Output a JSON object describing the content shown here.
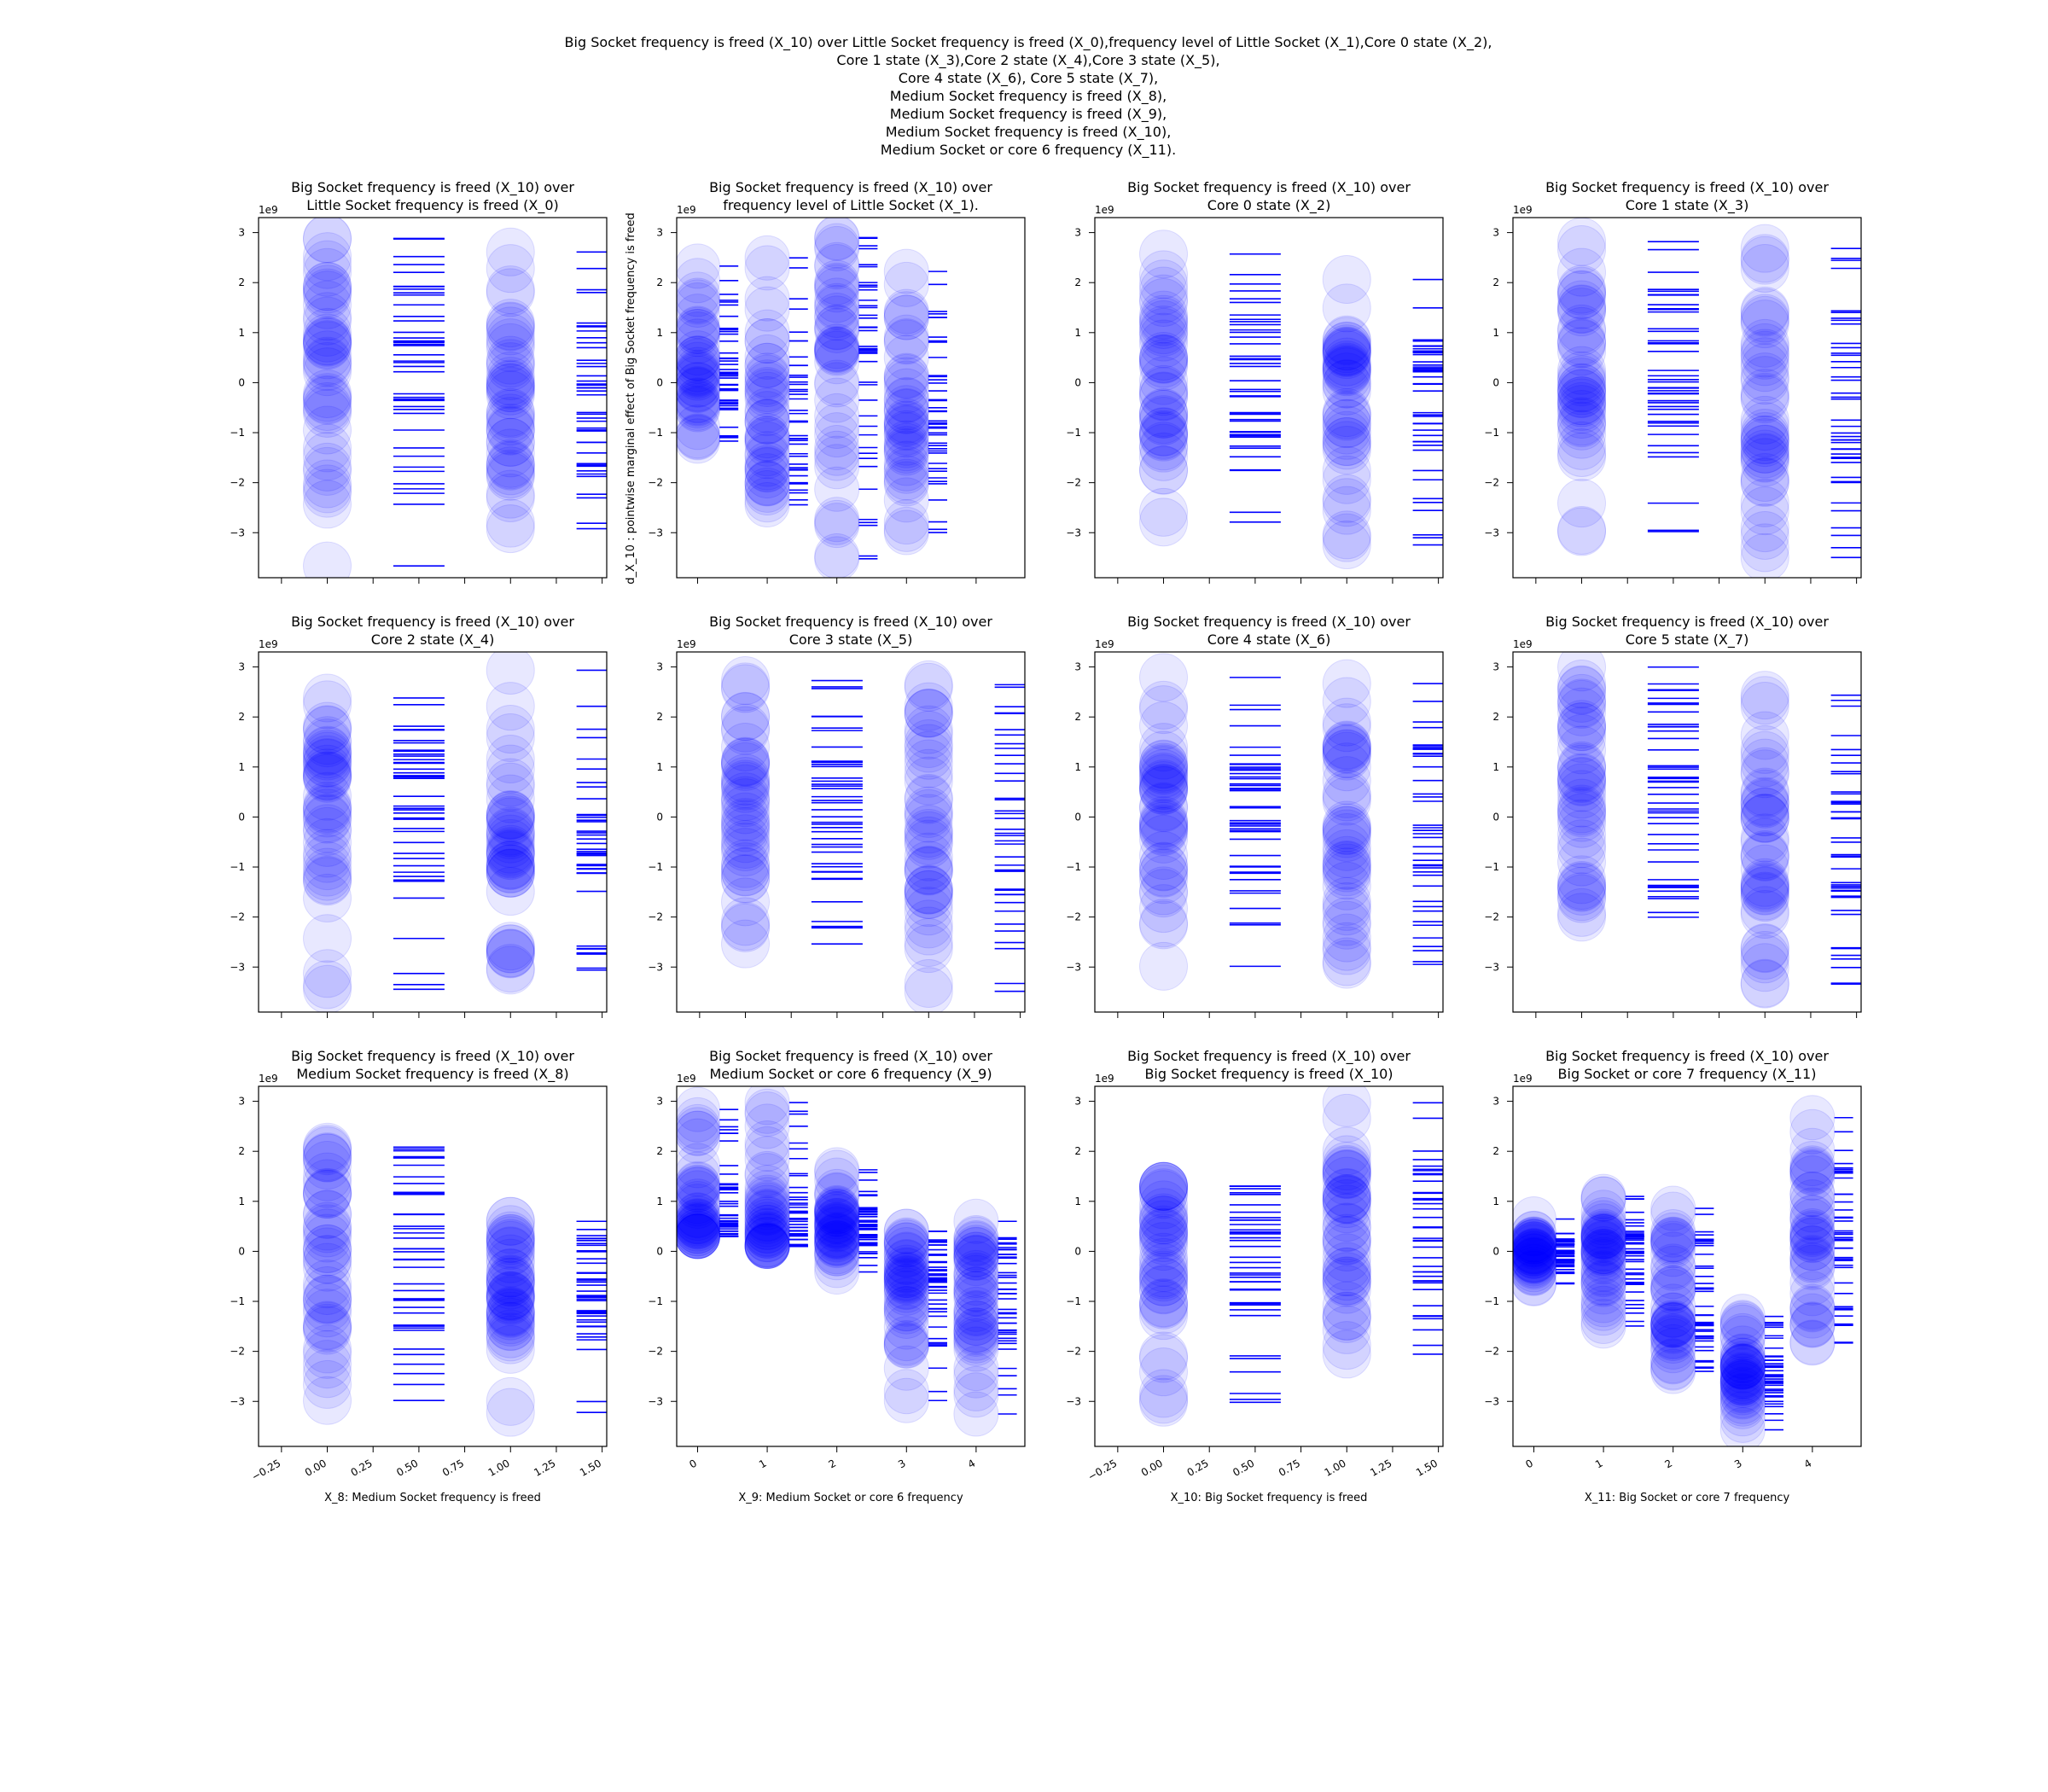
{
  "figure": {
    "title_lines": [
      "Big Socket frequency is freed (X_10) over Little Socket frequency is freed (X_0),frequency level of Little Socket (X_1),Core 0 state (X_2),",
      "Core 1 state (X_3),Core 2 state (X_4),Core 3 state (X_5),",
      "Core 4 state (X_6), Core 5 state (X_7),",
      "Medium Socket frequency is freed (X_8),",
      "Medium Socket frequency is freed (X_9),",
      "Medium Socket frequency is freed (X_10),",
      "Medium Socket or core 6 frequency (X_11)."
    ],
    "shared_ylabel": "d_X_10 : pointwise marginal effect of Big Socket frequency is freed",
    "colors": {
      "marker": "#0000ff",
      "axes": "#000000"
    }
  },
  "chart_data": [
    {
      "type": "scatter",
      "title_lines": [
        "Big Socket frequency is freed (X_10) over",
        "Little Socket frequency is freed (X_0)"
      ],
      "x_kind": "binary",
      "ylim": [
        -3.9,
        3.3
      ],
      "y_exponent": "1e9",
      "yticks": [
        "−3",
        "−2",
        "−1",
        "0",
        "1",
        "2",
        "3"
      ],
      "groups": [
        {
          "x": 0,
          "ymin": -3.7,
          "ymax": 2.9,
          "center": 0.4
        },
        {
          "x": 1,
          "ymin": -3.0,
          "ymax": 2.9,
          "center": -0.6
        }
      ]
    },
    {
      "type": "scatter",
      "title_lines": [
        "Big Socket frequency is freed (X_10) over",
        "frequency level of Little Socket (X_1)."
      ],
      "x_kind": "categorical5",
      "ylim": [
        -3.9,
        3.3
      ],
      "y_exponent": "1e9",
      "yticks": [
        "−3",
        "−2",
        "−1",
        "0",
        "1",
        "2",
        "3"
      ],
      "groups": [
        {
          "x": 0,
          "ymin": -1.4,
          "ymax": 2.4,
          "center": 0.2
        },
        {
          "x": 1,
          "ymin": -2.9,
          "ymax": 2.7,
          "center": -0.5
        },
        {
          "x": 2,
          "ymin": -3.6,
          "ymax": 2.9,
          "center": 0.4
        },
        {
          "x": 3,
          "ymin": -3.0,
          "ymax": 2.9,
          "center": -0.3
        }
      ]
    },
    {
      "type": "scatter",
      "title_lines": [
        "Big Socket frequency is freed (X_10) over",
        "Core 0 state (X_2)"
      ],
      "x_kind": "binary",
      "ylim": [
        -3.9,
        3.3
      ],
      "y_exponent": "1e9",
      "yticks": [
        "−3",
        "−2",
        "−1",
        "0",
        "1",
        "2",
        "3"
      ],
      "groups": [
        {
          "x": 0,
          "ymin": -2.9,
          "ymax": 2.8,
          "center": 0.3
        },
        {
          "x": 1,
          "ymin": -3.6,
          "ymax": 3.1,
          "center": -0.4
        }
      ]
    },
    {
      "type": "scatter",
      "title_lines": [
        "Big Socket frequency is freed (X_10) over",
        "Core 1 state (X_3)"
      ],
      "x_kind": "binary",
      "ylim": [
        -3.9,
        3.3
      ],
      "y_exponent": "1e9",
      "yticks": [
        "−3",
        "−2",
        "−1",
        "0",
        "1",
        "2",
        "3"
      ],
      "groups": [
        {
          "x": 0,
          "ymin": -3.0,
          "ymax": 3.0,
          "center": 0.3
        },
        {
          "x": 1,
          "ymin": -3.6,
          "ymax": 2.8,
          "center": -0.2
        }
      ]
    },
    {
      "type": "scatter",
      "title_lines": [
        "Big Socket frequency is freed (X_10) over",
        "Core 2 state (X_4)"
      ],
      "x_kind": "binary",
      "ylim": [
        -3.9,
        3.3
      ],
      "y_exponent": "1e9",
      "yticks": [
        "−3",
        "−2",
        "−1",
        "0",
        "1",
        "2",
        "3"
      ],
      "groups": [
        {
          "x": 0,
          "ymin": -3.6,
          "ymax": 3.0,
          "center": 0.4
        },
        {
          "x": 1,
          "ymin": -3.1,
          "ymax": 3.0,
          "center": -0.4
        }
      ]
    },
    {
      "type": "scatter",
      "title_lines": [
        "Big Socket frequency is freed (X_10) over",
        "Core 3 state (X_5)"
      ],
      "x_kind": "binary",
      "ylim": [
        -3.9,
        3.3
      ],
      "y_exponent": "1e9",
      "yticks": [
        "−3",
        "−2",
        "−1",
        "0",
        "1",
        "2",
        "3"
      ],
      "groups": [
        {
          "x": 0,
          "ymin": -2.8,
          "ymax": 3.0,
          "center": 0.2
        },
        {
          "x": 1,
          "ymin": -3.6,
          "ymax": 3.0,
          "center": -0.5
        }
      ]
    },
    {
      "type": "scatter",
      "title_lines": [
        "Big Socket frequency is freed (X_10) over",
        "Core 4 state (X_6)"
      ],
      "x_kind": "binary",
      "ylim": [
        -3.9,
        3.3
      ],
      "y_exponent": "1e9",
      "yticks": [
        "−3",
        "−2",
        "−1",
        "0",
        "1",
        "2",
        "3"
      ],
      "groups": [
        {
          "x": 0,
          "ymin": -3.6,
          "ymax": 3.0,
          "center": 0.3
        },
        {
          "x": 1,
          "ymin": -3.1,
          "ymax": 2.7,
          "center": -0.3
        }
      ]
    },
    {
      "type": "scatter",
      "title_lines": [
        "Big Socket frequency is freed (X_10) over",
        "Core 5 state (X_7)"
      ],
      "x_kind": "binary",
      "ylim": [
        -3.9,
        3.3
      ],
      "y_exponent": "1e9",
      "yticks": [
        "−3",
        "−2",
        "−1",
        "0",
        "1",
        "2",
        "3"
      ],
      "groups": [
        {
          "x": 0,
          "ymin": -2.2,
          "ymax": 3.0,
          "center": 0.5
        },
        {
          "x": 1,
          "ymin": -3.6,
          "ymax": 2.5,
          "center": -0.6
        }
      ]
    },
    {
      "type": "scatter",
      "title_lines": [
        "Big Socket frequency is freed (X_10) over",
        "Medium Socket frequency is freed (X_8)"
      ],
      "x_kind": "binary",
      "ylim": [
        -3.9,
        3.3
      ],
      "y_exponent": "1e9",
      "yticks": [
        "−3",
        "−2",
        "−1",
        "0",
        "1",
        "2",
        "3"
      ],
      "xlabel": "X_8: Medium Socket frequency is freed",
      "xticks": [
        "−0.25",
        "0.00",
        "0.25",
        "0.50",
        "0.75",
        "1.00",
        "1.25",
        "1.50"
      ],
      "groups": [
        {
          "x": 0,
          "ymin": -3.0,
          "ymax": 3.0,
          "center": 0.5
        },
        {
          "x": 1,
          "ymin": -3.6,
          "ymax": 0.6,
          "center": -0.8
        }
      ]
    },
    {
      "type": "scatter",
      "title_lines": [
        "Big Socket frequency is freed (X_10) over",
        "Medium Socket or core 6 frequency (X_9)"
      ],
      "x_kind": "categorical5",
      "ylim": [
        -3.9,
        3.3
      ],
      "y_exponent": "1e9",
      "yticks": [
        "−3",
        "−2",
        "−1",
        "0",
        "1",
        "2",
        "3"
      ],
      "xlabel": "X_9: Medium Socket or core 6 frequency",
      "xticks": [
        "0",
        "1",
        "2",
        "3",
        "4"
      ],
      "groups": [
        {
          "x": 0,
          "ymin": 0.3,
          "ymax": 3.0,
          "center": 0.4
        },
        {
          "x": 1,
          "ymin": 0.1,
          "ymax": 3.0,
          "center": 0.5
        },
        {
          "x": 2,
          "ymin": -0.7,
          "ymax": 1.8,
          "center": 0.5
        },
        {
          "x": 3,
          "ymin": -3.0,
          "ymax": 0.4,
          "center": -0.4
        },
        {
          "x": 4,
          "ymin": -3.6,
          "ymax": 0.6,
          "center": -0.8
        }
      ]
    },
    {
      "type": "scatter",
      "title_lines": [
        "Big Socket frequency is freed (X_10) over",
        "Big Socket frequency is freed (X_10)"
      ],
      "x_kind": "binary",
      "ylim": [
        -3.9,
        3.3
      ],
      "y_exponent": "1e9",
      "yticks": [
        "−3",
        "−2",
        "−1",
        "0",
        "1",
        "2",
        "3"
      ],
      "xlabel": "X_10: Big Socket frequency is freed",
      "xticks": [
        "−0.25",
        "0.00",
        "0.25",
        "0.50",
        "0.75",
        "1.00",
        "1.25",
        "1.50"
      ],
      "groups": [
        {
          "x": 0,
          "ymin": -3.6,
          "ymax": 1.3,
          "center": 0.3
        },
        {
          "x": 1,
          "ymin": -2.2,
          "ymax": 3.0,
          "center": 0.4
        }
      ]
    },
    {
      "type": "scatter",
      "title_lines": [
        "Big Socket frequency is freed (X_10) over",
        "Big Socket or core 7 frequency (X_11)"
      ],
      "x_kind": "categorical5",
      "ylim": [
        -3.9,
        3.3
      ],
      "y_exponent": "1e9",
      "yticks": [
        "−3",
        "−2",
        "−1",
        "0",
        "1",
        "2",
        "3"
      ],
      "xlabel": "X_11: Big Socket or core 7 frequency",
      "xticks": [
        "0",
        "1",
        "2",
        "3",
        "4"
      ],
      "groups": [
        {
          "x": 0,
          "ymin": -0.7,
          "ymax": 0.7,
          "center": 0.0
        },
        {
          "x": 1,
          "ymin": -1.8,
          "ymax": 1.3,
          "center": 0.2
        },
        {
          "x": 2,
          "ymin": -2.4,
          "ymax": 0.9,
          "center": -1.2
        },
        {
          "x": 3,
          "ymin": -3.6,
          "ymax": -1.3,
          "center": -2.3
        },
        {
          "x": 4,
          "ymin": -2.2,
          "ymax": 3.0,
          "center": 0.3
        }
      ]
    }
  ]
}
